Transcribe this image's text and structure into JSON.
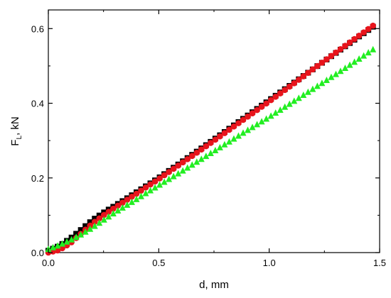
{
  "chart_data": {
    "type": "scatter",
    "xlabel": "d, mm",
    "ylabel": {
      "base": "F",
      "sub": "L",
      "rest": ", kN"
    },
    "xlim": [
      0.0,
      1.5
    ],
    "ylim": [
      0.0,
      0.65
    ],
    "xticks": [
      0.0,
      0.5,
      1.0,
      1.5
    ],
    "yticks": [
      0.0,
      0.2,
      0.4,
      0.6
    ],
    "xtick_labels": [
      "0.0",
      "0.5",
      "1.0",
      "1.5"
    ],
    "ytick_labels": [
      "0.0",
      "0.2",
      "0.4",
      "0.6"
    ],
    "grid": false,
    "series": [
      {
        "marker": "square",
        "color": "#000000",
        "x": [
          0.0,
          0.05,
          0.1,
          0.15,
          0.2,
          0.25,
          0.3,
          0.35,
          0.4,
          0.45,
          0.5,
          0.6,
          0.7,
          0.8,
          0.9,
          1.0,
          1.1,
          1.2,
          1.3,
          1.4,
          1.47
        ],
        "y": [
          0.005,
          0.018,
          0.038,
          0.062,
          0.087,
          0.107,
          0.125,
          0.143,
          0.162,
          0.181,
          0.2,
          0.241,
          0.282,
          0.324,
          0.366,
          0.408,
          0.45,
          0.492,
          0.534,
          0.576,
          0.605
        ]
      },
      {
        "marker": "circle",
        "color": "#e8141c",
        "x": [
          0.0,
          0.05,
          0.1,
          0.15,
          0.2,
          0.25,
          0.3,
          0.35,
          0.4,
          0.45,
          0.5,
          0.6,
          0.7,
          0.8,
          0.9,
          1.0,
          1.1,
          1.2,
          1.3,
          1.4,
          1.48
        ],
        "y": [
          0.0,
          0.007,
          0.025,
          0.052,
          0.078,
          0.1,
          0.12,
          0.139,
          0.158,
          0.178,
          0.197,
          0.238,
          0.279,
          0.321,
          0.363,
          0.405,
          0.448,
          0.492,
          0.535,
          0.578,
          0.612
        ]
      },
      {
        "marker": "triangle",
        "color": "#22ee22",
        "x": [
          0.0,
          0.05,
          0.1,
          0.15,
          0.2,
          0.25,
          0.3,
          0.35,
          0.4,
          0.45,
          0.5,
          0.6,
          0.7,
          0.8,
          0.9,
          1.0,
          1.1,
          1.2,
          1.3,
          1.4,
          1.47
        ],
        "y": [
          0.01,
          0.021,
          0.034,
          0.05,
          0.068,
          0.088,
          0.108,
          0.126,
          0.144,
          0.163,
          0.181,
          0.217,
          0.254,
          0.291,
          0.328,
          0.364,
          0.402,
          0.44,
          0.478,
          0.517,
          0.545
        ]
      }
    ]
  }
}
